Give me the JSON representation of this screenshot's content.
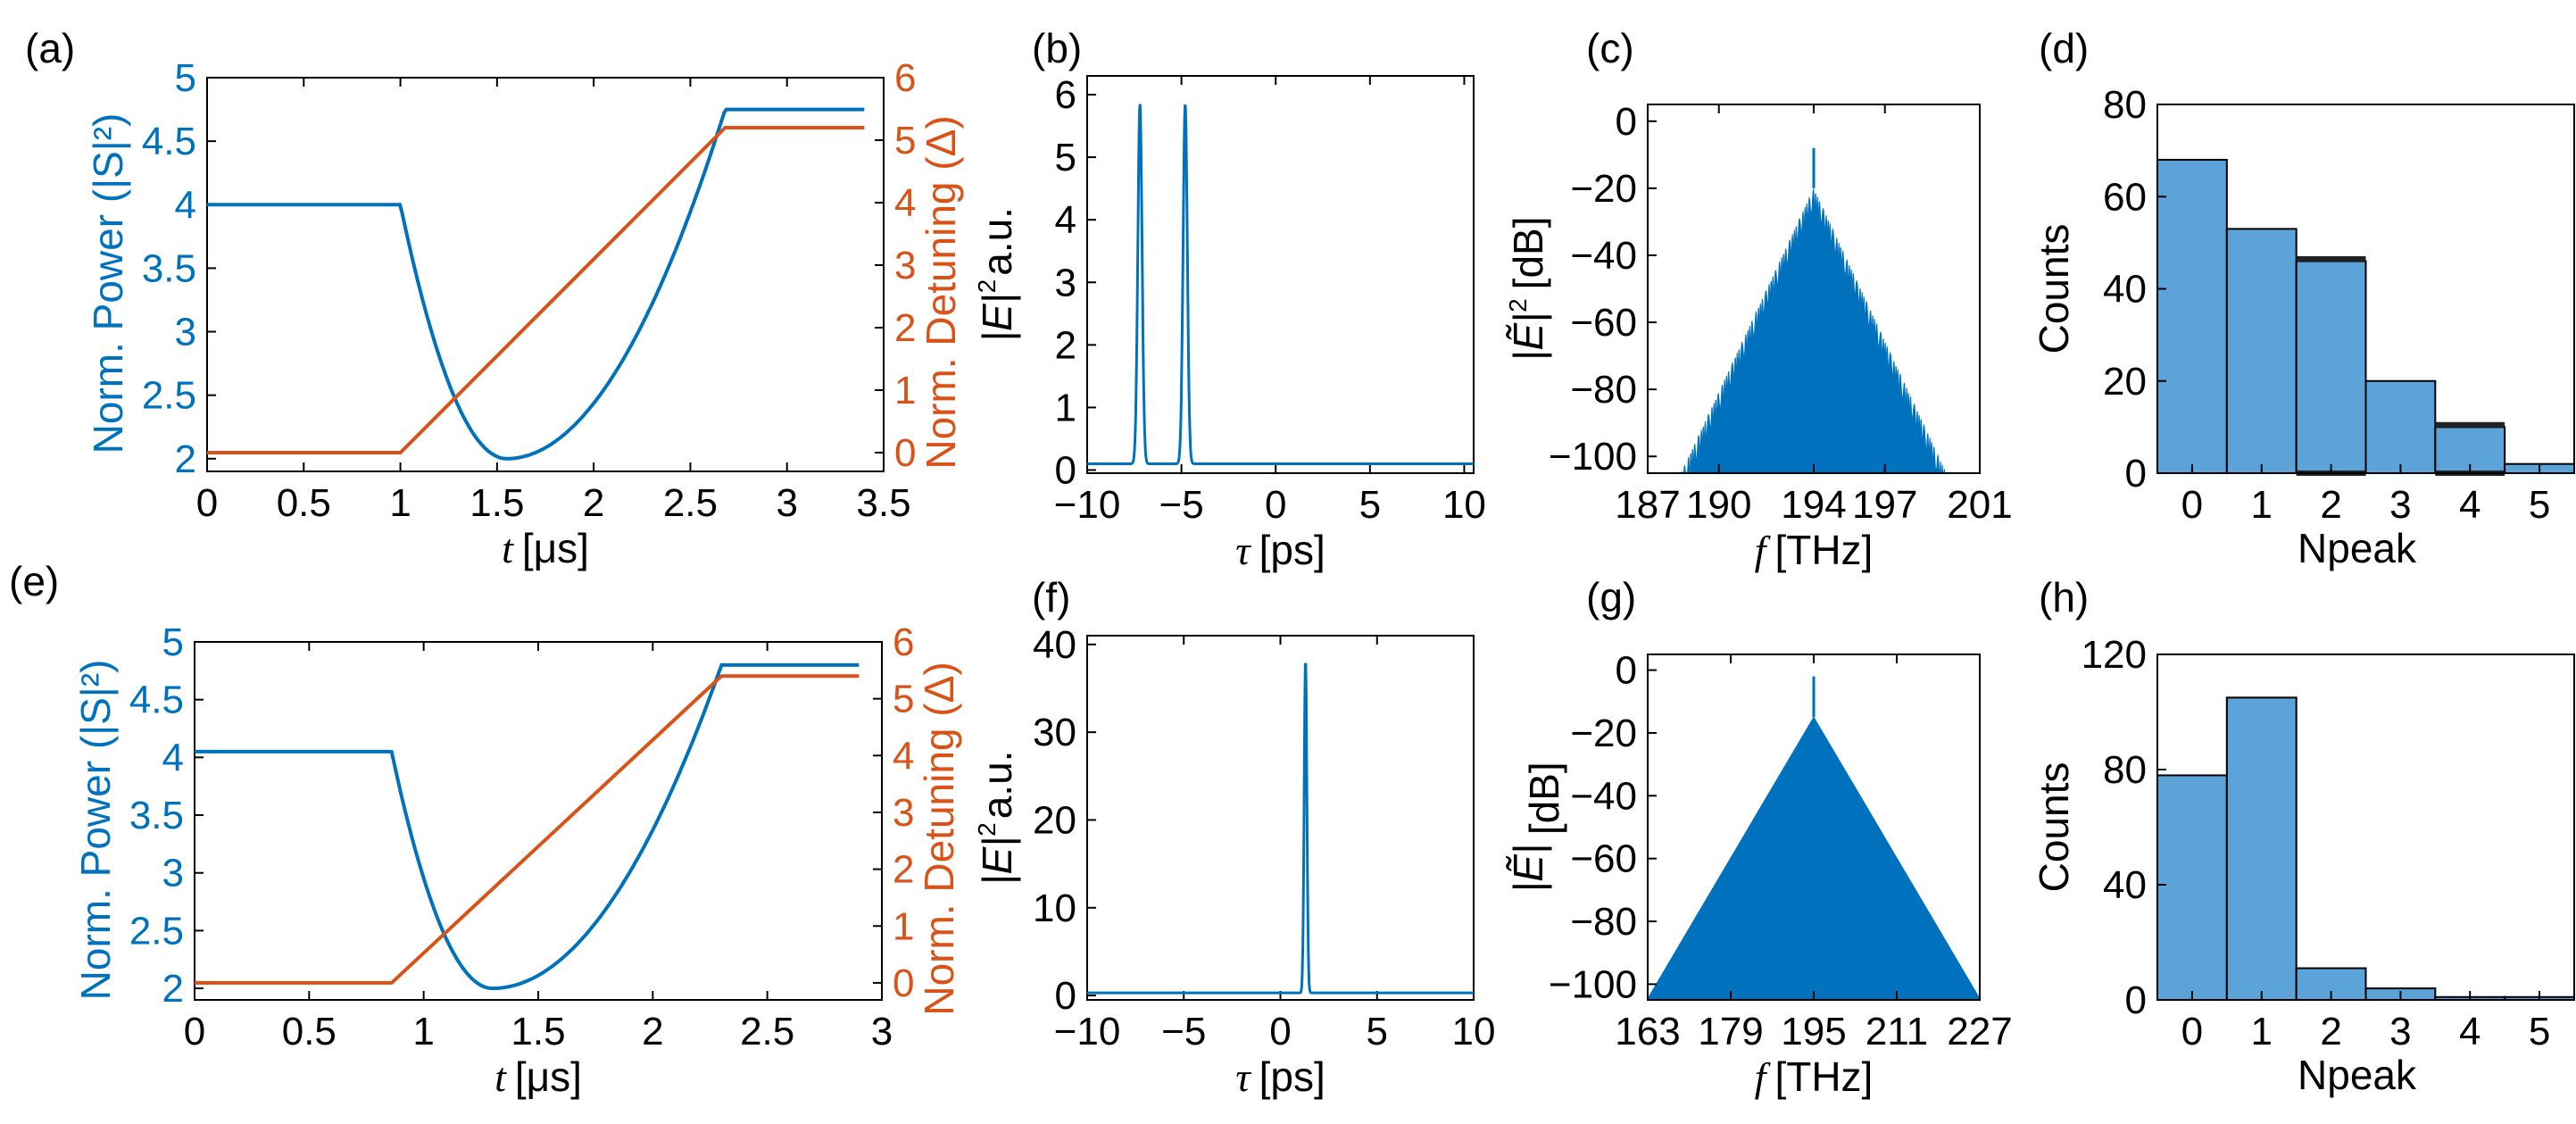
{
  "colors": {
    "blue": "#0072BD",
    "orange": "#D95319",
    "bar_fill": "#5BA3D9",
    "bar_stroke": "#000000",
    "err": "#222222",
    "axis": "#000000"
  },
  "chart_data": [
    {
      "id": "a",
      "panel_label": "(a)",
      "type": "line",
      "xlabel_italic": "t",
      "xlabel_unit": "[μs]",
      "ylabel_left": "Norm. Power (|S|²)",
      "ylabel_right": "Norm. Detuning (Δ)",
      "xlim": [
        0,
        3.5
      ],
      "ylim_left": [
        1.9,
        5.0
      ],
      "ylim_right": [
        -0.3,
        6.0
      ],
      "xticks": [
        0,
        0.5,
        1,
        1.5,
        2,
        2.5,
        3,
        3.5
      ],
      "xticklabels": [
        "0",
        "0.5",
        "1",
        "1.5",
        "2",
        "2.5",
        "3",
        "3.5"
      ],
      "yticks_left": [
        2,
        2.5,
        3,
        3.5,
        4,
        4.5,
        5
      ],
      "yticklabels_left": [
        "2",
        "2.5",
        "3",
        "3.5",
        "4",
        "4.5",
        "5"
      ],
      "yticks_right": [
        0,
        1,
        2,
        3,
        4,
        5,
        6
      ],
      "yticklabels_right": [
        "0",
        "1",
        "2",
        "3",
        "4",
        "5",
        "6"
      ],
      "power_params": {
        "t_start": 1.0,
        "p_init": 4.0,
        "t_min": 1.55,
        "p_min": 2.0,
        "t_end": 2.68,
        "p_end": 4.75,
        "t_max": 3.4
      },
      "detuning_params": {
        "t_start": 1.0,
        "t_end": 2.68,
        "d_end": 5.2,
        "t_max": 3.4
      }
    },
    {
      "id": "b",
      "panel_label": "(b)",
      "type": "line",
      "xlabel_italic": "τ",
      "xlabel_unit": "[ps]",
      "ylabel_main": "|E|",
      "ylabel_sup": "2",
      "ylabel_unit": "a.u.",
      "xlim": [
        -10,
        10.5
      ],
      "ylim": [
        -0.05,
        6.3
      ],
      "xticks": [
        -10,
        -5,
        0,
        5,
        10
      ],
      "xticklabels": [
        "−10",
        "−5",
        "0",
        "5",
        "10"
      ],
      "yticks": [
        0,
        1,
        2,
        3,
        4,
        5,
        6
      ],
      "yticklabels": [
        "0",
        "1",
        "2",
        "3",
        "4",
        "5",
        "6"
      ],
      "baseline": 0.1,
      "peaks": [
        {
          "x": -7.2,
          "y": 5.85,
          "w": 0.16
        },
        {
          "x": -4.8,
          "y": 5.85,
          "w": 0.16
        }
      ]
    },
    {
      "id": "c",
      "panel_label": "(c)",
      "type": "area",
      "xlabel_italic": "f",
      "xlabel_unit": "[THz]",
      "ylabel_main": "|Ẽ|",
      "ylabel_sup": "2",
      "ylabel_unit": "[dB]",
      "xlim": [
        187,
        201
      ],
      "ylim": [
        -105,
        5
      ],
      "xticks": [
        187,
        190,
        194,
        197,
        201
      ],
      "xticklabels": [
        "187",
        "190",
        "194",
        "197",
        "201"
      ],
      "yticks": [
        0,
        -20,
        -40,
        -60,
        -80,
        -100
      ],
      "yticklabels": [
        "0",
        "−20",
        "−40",
        "−60",
        "−80",
        "−100"
      ],
      "spectrum_params": {
        "center": 194,
        "peak": -20,
        "slope_db_per_thz": 15.2,
        "pump": -8,
        "ripple_db": 6,
        "line_spacing_thz": 0.09,
        "fmin": 187.4,
        "fmax": 200.6
      }
    },
    {
      "id": "d",
      "panel_label": "(d)",
      "type": "bar",
      "xlabel": "Npeak",
      "ylabel": "Counts",
      "categories": [
        "0",
        "1",
        "2",
        "3",
        "4",
        "5"
      ],
      "values": [
        68,
        53,
        46,
        20,
        10,
        2
      ],
      "errors": [
        0,
        0,
        [
          0,
          46.5
        ],
        0,
        [
          0,
          10.5
        ],
        0
      ],
      "ylim": [
        0,
        80
      ],
      "yticks": [
        0,
        20,
        40,
        60,
        80
      ],
      "yticklabels": [
        "0",
        "20",
        "40",
        "60",
        "80"
      ]
    },
    {
      "id": "e",
      "panel_label": "(e)",
      "type": "line",
      "xlabel_italic": "t",
      "xlabel_unit": "[μs]",
      "ylabel_left": "Norm. Power (|S|²)",
      "ylabel_right": "Norm. Detuning (Δ)",
      "xlim": [
        0,
        3.0
      ],
      "ylim_left": [
        1.9,
        5.0
      ],
      "ylim_right": [
        -0.3,
        6.0
      ],
      "xticks": [
        0,
        0.5,
        1,
        1.5,
        2,
        2.5,
        3
      ],
      "xticklabels": [
        "0",
        "0.5",
        "1",
        "1.5",
        "2",
        "2.5",
        "3"
      ],
      "yticks_left": [
        2,
        2.5,
        3,
        3.5,
        4,
        4.5,
        5
      ],
      "yticklabels_left": [
        "2",
        "2.5",
        "3",
        "3.5",
        "4",
        "4.5",
        "5"
      ],
      "yticks_right": [
        0,
        1,
        2,
        3,
        4,
        5,
        6
      ],
      "yticklabels_right": [
        "0",
        "1",
        "2",
        "3",
        "4",
        "5",
        "6"
      ],
      "power_params": {
        "t_start": 0.86,
        "p_init": 4.05,
        "t_min": 1.3,
        "p_min": 2.0,
        "t_end": 2.3,
        "p_end": 4.8,
        "t_max": 2.9
      },
      "detuning_params": {
        "t_start": 0.86,
        "t_end": 2.3,
        "d_end": 5.4,
        "t_max": 2.9
      }
    },
    {
      "id": "f",
      "panel_label": "(f)",
      "type": "line",
      "xlabel_italic": "τ",
      "xlabel_unit": "[ps]",
      "ylabel_main": "|E|",
      "ylabel_sup": "2",
      "ylabel_unit": "a.u.",
      "xlim": [
        -10,
        10
      ],
      "ylim": [
        -0.5,
        41
      ],
      "xticks": [
        -10,
        -5,
        0,
        5,
        10
      ],
      "xticklabels": [
        "−10",
        "−5",
        "0",
        "5",
        "10"
      ],
      "yticks": [
        0,
        10,
        20,
        30,
        40
      ],
      "yticklabels": [
        "0",
        "10",
        "20",
        "30",
        "40"
      ],
      "baseline": 0.3,
      "peaks": [
        {
          "x": 1.3,
          "y": 38.2,
          "w": 0.1
        }
      ]
    },
    {
      "id": "g",
      "panel_label": "(g)",
      "type": "area",
      "xlabel_italic": "f",
      "xlabel_unit": "[THz]",
      "ylabel_main": "|Ẽ|",
      "ylabel_sup": "",
      "ylabel_unit": "[dB]",
      "xlim": [
        163,
        227
      ],
      "ylim": [
        -105,
        5
      ],
      "xticks": [
        163,
        179,
        195,
        211,
        227
      ],
      "xticklabels": [
        "163",
        "179",
        "195",
        "211",
        "227"
      ],
      "yticks": [
        0,
        -20,
        -40,
        -60,
        -80,
        -100
      ],
      "yticklabels": [
        "0",
        "−20",
        "−40",
        "−60",
        "−80",
        "−100"
      ],
      "spectrum_params": {
        "center": 195,
        "peak": -15,
        "slope_db_per_thz": 2.8,
        "pump": -2,
        "ripple_db": 0,
        "line_spacing_thz": 0.2,
        "fmin": 163,
        "fmax": 227
      }
    },
    {
      "id": "h",
      "panel_label": "(h)",
      "type": "bar",
      "xlabel": "Npeak",
      "ylabel": "Counts",
      "categories": [
        "0",
        "1",
        "2",
        "3",
        "4",
        "5"
      ],
      "values": [
        78,
        105,
        11,
        4,
        1,
        1
      ],
      "errors": [
        0,
        0,
        0,
        0,
        0,
        0
      ],
      "ylim": [
        0,
        120
      ],
      "yticks": [
        0,
        40,
        80,
        120
      ],
      "yticklabels": [
        "0",
        "40",
        "80",
        "120"
      ]
    }
  ]
}
